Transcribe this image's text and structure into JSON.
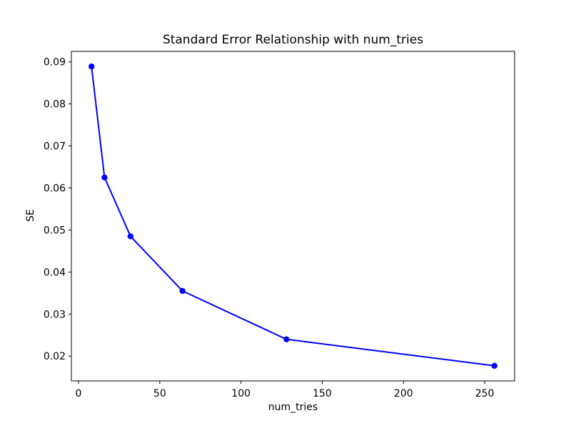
{
  "chart_data": {
    "type": "line",
    "title": "Standard Error Relationship with num_tries",
    "xlabel": "num_tries",
    "ylabel": "SE",
    "x": [
      8,
      16,
      32,
      64,
      128,
      256
    ],
    "y": [
      0.0889,
      0.0625,
      0.0485,
      0.0355,
      0.024,
      0.0177
    ],
    "xticks": [
      0,
      50,
      100,
      150,
      200,
      250
    ],
    "xtick_labels": [
      "0",
      "50",
      "100",
      "150",
      "200",
      "250"
    ],
    "yticks": [
      0.02,
      0.03,
      0.04,
      0.05,
      0.06,
      0.07,
      0.08,
      0.09
    ],
    "ytick_labels": [
      "0.02",
      "0.03",
      "0.04",
      "0.05",
      "0.06",
      "0.07",
      "0.08",
      "0.09"
    ],
    "xlim": [
      -4.4,
      268.4
    ],
    "ylim": [
      0.0141,
      0.0925
    ],
    "line_color": "#0000ff",
    "marker": "o",
    "marker_color": "#0000ff",
    "axes_color": "#000000",
    "background_color": "#ffffff",
    "grid": false,
    "legend": null
  }
}
